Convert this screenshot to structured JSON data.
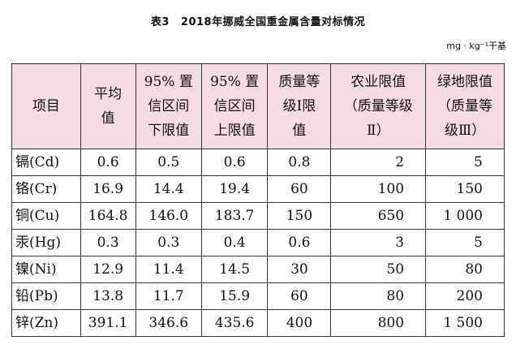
{
  "title": {
    "label": "表3",
    "text": "2018年挪威全国重金属含量对标情况"
  },
  "unit": "mg · kg⁻¹干基",
  "table": {
    "headers": [
      {
        "lines": [
          "项目"
        ]
      },
      {
        "lines": [
          "平均",
          "值"
        ]
      },
      {
        "lines": [
          "95% 置",
          "信区间",
          "下限值"
        ]
      },
      {
        "lines": [
          "95% 置",
          "信区间",
          "上限值"
        ]
      },
      {
        "lines": [
          "质量等",
          "级Ⅰ限",
          "值"
        ]
      },
      {
        "lines": [
          "农业限值",
          "（质量等级",
          "Ⅱ）"
        ]
      },
      {
        "lines": [
          "绿地限值",
          "（质量等",
          "级Ⅲ）"
        ]
      }
    ],
    "rows": [
      [
        "镉(Cd)",
        "0.6",
        "0.5",
        "0.6",
        "0.8",
        "2",
        "5"
      ],
      [
        "铬(Cr)",
        "16.9",
        "14.4",
        "19.4",
        "60",
        "100",
        "150"
      ],
      [
        "铜(Cu)",
        "164.8",
        "146.0",
        "183.7",
        "150",
        "650",
        "1 000"
      ],
      [
        "汞(Hg)",
        "0.3",
        "0.3",
        "0.4",
        "0.6",
        "3",
        "5"
      ],
      [
        "镍(Ni)",
        "12.9",
        "11.4",
        "14.5",
        "30",
        "50",
        "80"
      ],
      [
        "铅(Pb)",
        "13.8",
        "11.7",
        "15.9",
        "60",
        "80",
        "200"
      ],
      [
        "锌(Zn)",
        "391.1",
        "346.6",
        "435.6",
        "400",
        "800",
        "1 500"
      ]
    ]
  }
}
